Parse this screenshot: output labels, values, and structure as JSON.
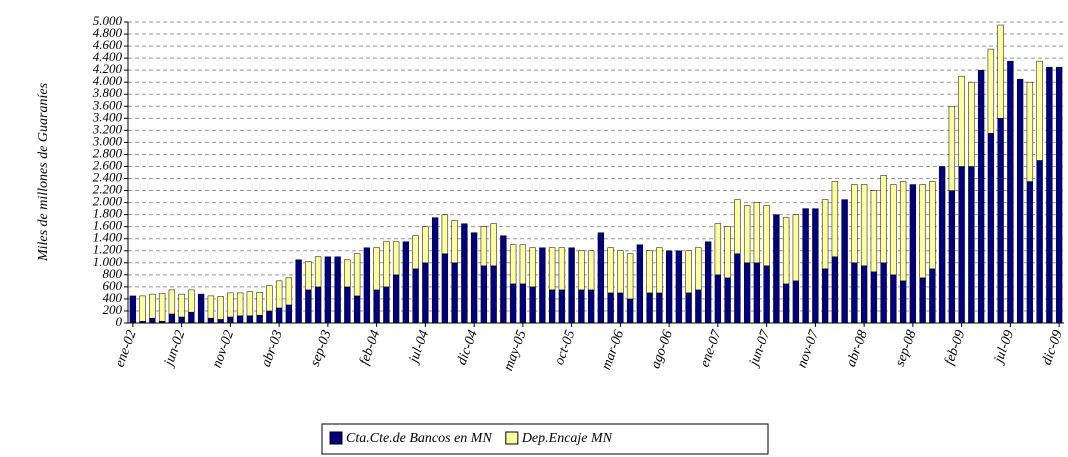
{
  "chart_data": {
    "type": "stacked_bar",
    "y_label": "Miles de millones de Guaraníes",
    "categories": [
      "ene-02",
      null,
      null,
      null,
      null,
      "jun-02",
      null,
      null,
      null,
      null,
      "nov-02",
      null,
      null,
      null,
      null,
      "abr-03",
      null,
      null,
      null,
      null,
      "sep-03",
      null,
      null,
      null,
      null,
      "feb-04",
      null,
      null,
      null,
      null,
      "jul-04",
      null,
      null,
      null,
      null,
      "dic-04",
      null,
      null,
      null,
      null,
      "may-05",
      null,
      null,
      null,
      null,
      "oct-05",
      null,
      null,
      null,
      null,
      "mar-06",
      null,
      null,
      null,
      null,
      "ago-06",
      null,
      null,
      null,
      null,
      "ene-07",
      null,
      null,
      null,
      null,
      "jun-07",
      null,
      null,
      null,
      null,
      "nov-07",
      null,
      null,
      null,
      null,
      "abr-08",
      null,
      null,
      null,
      null,
      "sep-08",
      null,
      null,
      null,
      null,
      "feb-09",
      null,
      null,
      null,
      null,
      "jul-09",
      null,
      null,
      null,
      null,
      "dic-09"
    ],
    "series": [
      {
        "name": "Cta.Cte.de Bancos en MN",
        "color": "#00007f",
        "values": [
          450,
          30,
          80,
          30,
          150,
          100,
          180,
          480,
          80,
          60,
          100,
          120,
          120,
          130,
          200,
          250,
          300,
          1050,
          550,
          600,
          1100,
          1100,
          600,
          450,
          1250,
          550,
          600,
          800,
          1350,
          900,
          1000,
          1750,
          1150,
          1000,
          1650,
          1500,
          950,
          950,
          1450,
          650,
          650,
          600,
          1250,
          550,
          550,
          1250,
          550,
          550,
          1500,
          500,
          500,
          400,
          1300,
          500,
          500,
          1200,
          1200,
          500,
          550,
          1350,
          800,
          750,
          1150,
          1000,
          1000,
          950,
          1800,
          650,
          700,
          1900,
          1900,
          900,
          1100,
          2050,
          1000,
          950,
          850,
          1000,
          800,
          700,
          2300,
          750,
          900,
          2600,
          2200,
          2600,
          2600,
          4200,
          3150,
          3400,
          4350,
          4050,
          2350,
          2700,
          4250,
          4250
        ]
      },
      {
        "name": "Dep.Encaje MN",
        "color": "#ffffa0",
        "values": [
          0,
          420,
          400,
          460,
          400,
          380,
          370,
          0,
          370,
          380,
          400,
          380,
          400,
          380,
          420,
          450,
          450,
          0,
          470,
          500,
          0,
          0,
          450,
          700,
          0,
          700,
          750,
          550,
          0,
          550,
          600,
          0,
          650,
          700,
          0,
          0,
          650,
          700,
          0,
          650,
          650,
          650,
          0,
          700,
          700,
          0,
          650,
          650,
          0,
          750,
          700,
          750,
          0,
          700,
          750,
          0,
          0,
          700,
          700,
          0,
          850,
          850,
          900,
          950,
          1000,
          1000,
          0,
          1100,
          1100,
          0,
          0,
          1150,
          1250,
          0,
          1300,
          1350,
          1350,
          1450,
          1500,
          1650,
          0,
          1550,
          1450,
          0,
          1400,
          1500,
          1400,
          0,
          1400,
          1550,
          0,
          0,
          1650,
          1650,
          0,
          0
        ]
      }
    ],
    "ylim": [
      0,
      5000
    ],
    "yticks": [
      0,
      200,
      400,
      600,
      800,
      {
        "value": 1000,
        "label": "1.000"
      },
      {
        "value": 1200,
        "label": "1.200"
      },
      {
        "value": 1400,
        "label": "1.400"
      },
      {
        "value": 1600,
        "label": "1.600"
      },
      {
        "value": 1800,
        "label": "1.800"
      },
      {
        "value": 2000,
        "label": "2.000"
      },
      {
        "value": 2200,
        "label": "2.200"
      },
      {
        "value": 2400,
        "label": "2.400"
      },
      {
        "value": 2600,
        "label": "2.600"
      },
      {
        "value": 2800,
        "label": "2.800"
      },
      {
        "value": 3000,
        "label": "3.000"
      },
      {
        "value": 3200,
        "label": "3.200"
      },
      {
        "value": 3400,
        "label": "3.400"
      },
      {
        "value": 3600,
        "label": "3.600"
      },
      {
        "value": 3800,
        "label": "3.800"
      },
      {
        "value": 4000,
        "label": "4.000"
      },
      {
        "value": 4200,
        "label": "4.200"
      },
      {
        "value": 4400,
        "label": "4.400"
      },
      {
        "value": 4600,
        "label": "4.600"
      },
      {
        "value": 4800,
        "label": "4.800"
      },
      {
        "value": 5000,
        "label": "5.000"
      }
    ],
    "grid": true
  }
}
